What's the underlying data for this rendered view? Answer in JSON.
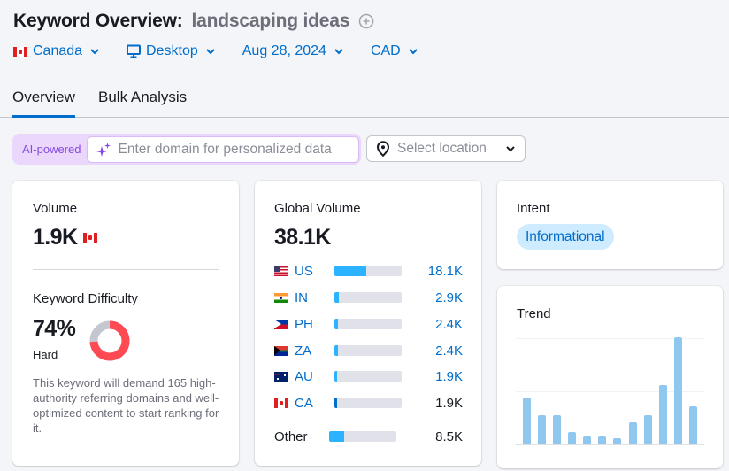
{
  "header": {
    "title": "Keyword Overview:",
    "keyword": "landscaping ideas",
    "add_icon": "plus-circle-icon"
  },
  "filters": {
    "country": "Canada",
    "device": "Desktop",
    "date": "Aug 28, 2024",
    "currency": "CAD"
  },
  "tabs": [
    {
      "label": "Overview",
      "active": true
    },
    {
      "label": "Bulk Analysis",
      "active": false
    }
  ],
  "ai_bar": {
    "badge": "AI-powered",
    "placeholder": "Enter domain for personalized data"
  },
  "location_select": {
    "placeholder": "Select location"
  },
  "volume_card": {
    "label": "Volume",
    "value": "1.9K",
    "flag": "CA"
  },
  "difficulty_card": {
    "label": "Keyword Difficulty",
    "value": "74%",
    "percent": 74,
    "level": "Hard",
    "description": "This keyword will demand 165 high-authority referring domains and well-optimized content to start ranking for it.",
    "colors": {
      "filled": "#ff4953",
      "empty": "#c4c7cf"
    }
  },
  "global_volume_card": {
    "label": "Global Volume",
    "value": "38.1K",
    "rows": [
      {
        "code": "US",
        "value": "18.1K",
        "fill_pct": 47
      },
      {
        "code": "IN",
        "value": "2.9K",
        "fill_pct": 7
      },
      {
        "code": "PH",
        "value": "2.4K",
        "fill_pct": 5
      },
      {
        "code": "ZA",
        "value": "2.4K",
        "fill_pct": 5
      },
      {
        "code": "AU",
        "value": "1.9K",
        "fill_pct": 4
      },
      {
        "code": "CA",
        "value": "1.9K",
        "fill_pct": 4
      }
    ],
    "other": {
      "label": "Other",
      "value": "8.5K",
      "fill_pct": 22
    }
  },
  "intent_card": {
    "label": "Intent",
    "value": "Informational"
  },
  "trend_card": {
    "label": "Trend",
    "bars": [
      0.43,
      0.27,
      0.27,
      0.11,
      0.07,
      0.07,
      0.05,
      0.2,
      0.27,
      0.55,
      1.0,
      0.35
    ]
  }
}
